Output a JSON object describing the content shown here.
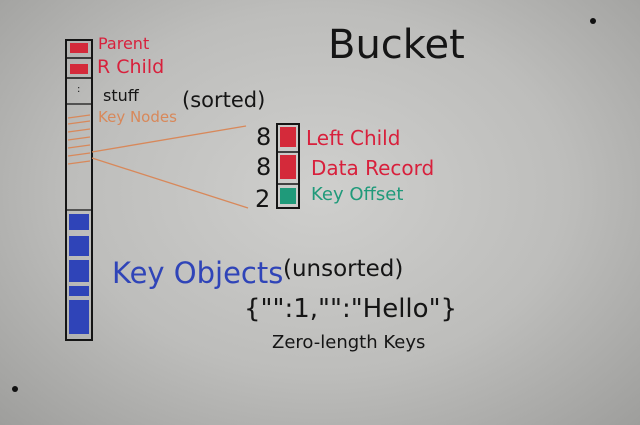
{
  "board": {
    "title": "Bucket",
    "struct_labels": {
      "parent": "Parent",
      "r_child": "R Child",
      "ellipsis": ":",
      "stuff": "stuff",
      "key_nodes": "Key Nodes",
      "sorted": "(sorted)"
    },
    "key_node_fields": [
      {
        "size": "8",
        "label": "Left Child"
      },
      {
        "size": "8",
        "label": "Data Record"
      },
      {
        "size": "2",
        "label": "Key Offset"
      }
    ],
    "key_objects": "Key Objects",
    "unsorted": "(unsorted)",
    "example": "{\"\":1,\"\":\"Hello\"}",
    "zero_length": "Zero-length Keys"
  },
  "colors": {
    "board": "#c8c8c6",
    "marker_black": "#151515",
    "marker_red": "#d8203c",
    "marker_orange": "#d8885a",
    "marker_blue": "#2f44b8",
    "marker_green": "#1f9a7a"
  }
}
